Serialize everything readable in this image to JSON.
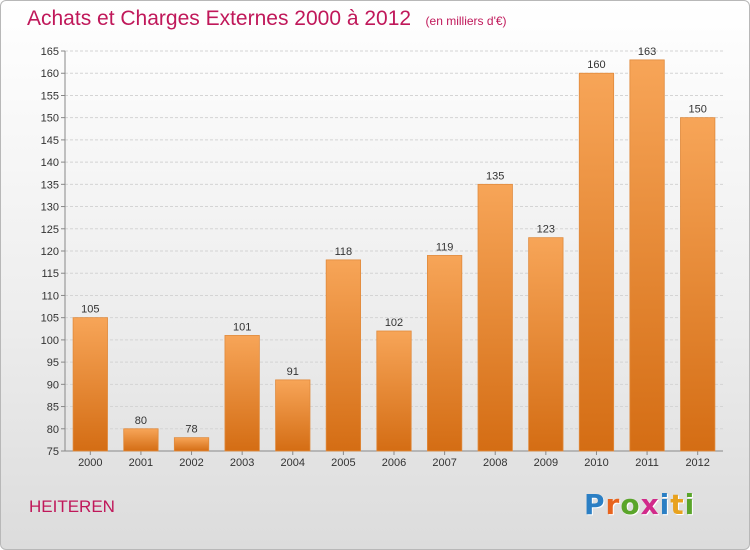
{
  "title": "Achats et Charges Externes 2000 à 2012",
  "unit_note": "(en milliers d'€)",
  "commune": "HEITEREN",
  "brand": {
    "text": "Proxiti",
    "letters": [
      {
        "ch": "P",
        "color": "#2b7fc4"
      },
      {
        "ch": "r",
        "color": "#e8641e"
      },
      {
        "ch": "o",
        "color": "#5aa52a"
      },
      {
        "ch": "x",
        "color": "#d12a8a"
      },
      {
        "ch": "i",
        "color": "#2b7fc4"
      },
      {
        "ch": "t",
        "color": "#e8a21e"
      },
      {
        "ch": "i",
        "color": "#5aa52a"
      }
    ]
  },
  "colors": {
    "title": "#c0185a",
    "bar_top": "#f7a558",
    "bar_bottom": "#d46d14",
    "grid": "#d4d4d4"
  },
  "chart_data": {
    "type": "bar",
    "title": "Achats et Charges Externes 2000 à 2012",
    "ylabel": "",
    "xlabel": "",
    "categories": [
      "2000",
      "2001",
      "2002",
      "2003",
      "2004",
      "2005",
      "2006",
      "2007",
      "2008",
      "2009",
      "2010",
      "2011",
      "2012"
    ],
    "values": [
      105,
      80,
      78,
      101,
      91,
      118,
      102,
      119,
      135,
      123,
      160,
      163,
      150
    ],
    "ylim": [
      75,
      165
    ],
    "yticks": [
      75,
      80,
      85,
      90,
      95,
      100,
      105,
      110,
      115,
      120,
      125,
      130,
      135,
      140,
      145,
      150,
      155,
      160,
      165
    ],
    "grid": true,
    "legend": "none"
  }
}
